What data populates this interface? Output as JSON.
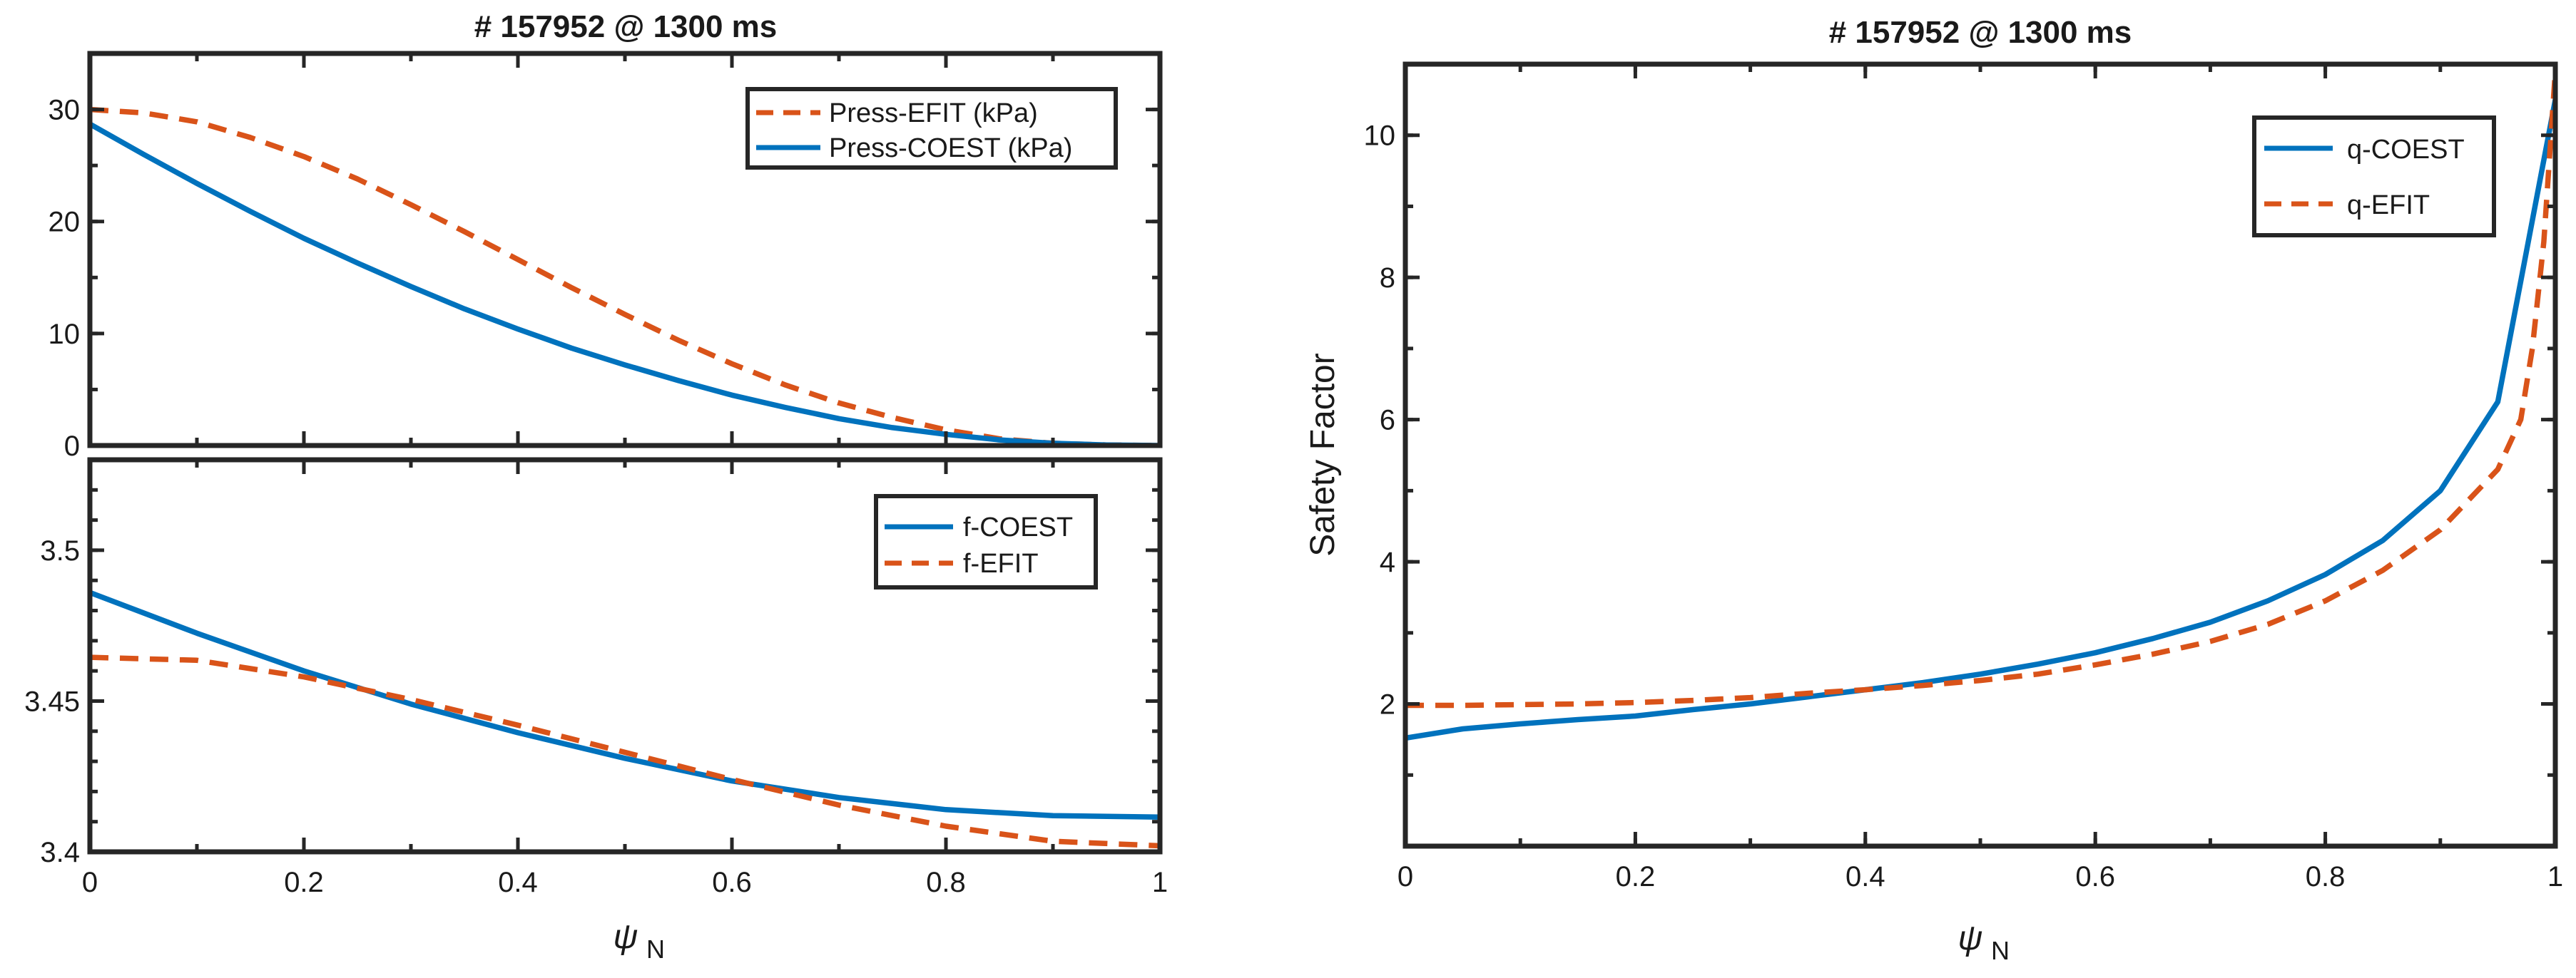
{
  "colors": {
    "coest": "#0072BD",
    "efit": "#D95319",
    "axis": "#262626"
  },
  "chart_data": [
    {
      "id": "pressure",
      "type": "line",
      "title": "# 157952 @ 1300 ms",
      "xlabel": "",
      "ylabel": "",
      "xlim": [
        0,
        1
      ],
      "ylim": [
        0,
        35
      ],
      "xticks": [
        0,
        0.2,
        0.4,
        0.6,
        0.8,
        1
      ],
      "yticks": [
        0,
        10,
        20,
        30
      ],
      "xticklabels": [],
      "yticklabels": [
        "0",
        "10",
        "20",
        "30"
      ],
      "legend_position": "top-right",
      "series": [
        {
          "name": "Press-EFIT (kPa)",
          "style": "dashed",
          "color": "#D95319",
          "x": [
            0,
            0.05,
            0.1,
            0.15,
            0.2,
            0.25,
            0.3,
            0.35,
            0.4,
            0.45,
            0.5,
            0.55,
            0.6,
            0.65,
            0.7,
            0.75,
            0.8,
            0.85,
            0.9,
            0.95,
            1
          ],
          "y": [
            30,
            29.7,
            28.9,
            27.5,
            25.8,
            23.8,
            21.5,
            19.1,
            16.6,
            14.1,
            11.7,
            9.4,
            7.3,
            5.4,
            3.8,
            2.5,
            1.4,
            0.6,
            0.2,
            0.05,
            0
          ]
        },
        {
          "name": "Press-COEST  (kPa)",
          "style": "solid",
          "color": "#0072BD",
          "x": [
            0,
            0.05,
            0.1,
            0.15,
            0.2,
            0.25,
            0.3,
            0.35,
            0.4,
            0.45,
            0.5,
            0.55,
            0.6,
            0.65,
            0.7,
            0.75,
            0.8,
            0.85,
            0.9,
            0.95,
            1
          ],
          "y": [
            28.7,
            26,
            23.4,
            20.9,
            18.5,
            16.3,
            14.2,
            12.2,
            10.4,
            8.7,
            7.2,
            5.8,
            4.5,
            3.4,
            2.4,
            1.6,
            1,
            0.5,
            0.2,
            0.05,
            0
          ]
        }
      ]
    },
    {
      "id": "f-function",
      "type": "line",
      "title": "",
      "xlabel": "ψN",
      "ylabel": "",
      "xlim": [
        0,
        1
      ],
      "ylim": [
        3.4,
        3.53
      ],
      "xticks": [
        0,
        0.2,
        0.4,
        0.6,
        0.8,
        1
      ],
      "yticks": [
        3.4,
        3.45,
        3.5
      ],
      "xticklabels": [
        "0",
        "0.2",
        "0.4",
        "0.6",
        "0.8",
        "1"
      ],
      "yticklabels": [
        "3.4",
        "3.45",
        "3.5"
      ],
      "legend_position": "top-right",
      "series": [
        {
          "name": "f-COEST",
          "style": "solid",
          "color": "#0072BD",
          "x": [
            0,
            0.1,
            0.2,
            0.3,
            0.4,
            0.5,
            0.6,
            0.7,
            0.8,
            0.9,
            1
          ],
          "y": [
            3.486,
            3.4725,
            3.46,
            3.449,
            3.4395,
            3.431,
            3.4235,
            3.418,
            3.414,
            3.412,
            3.4115
          ]
        },
        {
          "name": "f-EFIT",
          "style": "dashed",
          "color": "#D95319",
          "x": [
            0,
            0.1,
            0.2,
            0.3,
            0.4,
            0.5,
            0.6,
            0.7,
            0.8,
            0.9,
            1
          ],
          "y": [
            3.4645,
            3.4635,
            3.458,
            3.4505,
            3.442,
            3.433,
            3.424,
            3.4155,
            3.4085,
            3.4035,
            3.402
          ]
        }
      ]
    },
    {
      "id": "safety-factor",
      "type": "line",
      "title": "# 157952 @ 1300 ms",
      "xlabel": "ψN",
      "ylabel": "Safety Factor",
      "xlim": [
        0,
        1
      ],
      "ylim": [
        0,
        11
      ],
      "xticks": [
        0,
        0.2,
        0.4,
        0.6,
        0.8,
        1
      ],
      "yticks": [
        2,
        4,
        6,
        8,
        10
      ],
      "xticklabels": [
        "0",
        "0.2",
        "0.4",
        "0.6",
        "0.8",
        "1"
      ],
      "yticklabels": [
        "2",
        "4",
        "6",
        "8",
        "10"
      ],
      "legend_position": "top-right",
      "series": [
        {
          "name": "q-COEST",
          "style": "solid",
          "color": "#0072BD",
          "x": [
            0,
            0.05,
            0.1,
            0.15,
            0.2,
            0.25,
            0.3,
            0.35,
            0.4,
            0.45,
            0.5,
            0.55,
            0.6,
            0.65,
            0.7,
            0.75,
            0.8,
            0.85,
            0.9,
            0.95,
            1
          ],
          "y": [
            1.52,
            1.65,
            1.72,
            1.78,
            1.83,
            1.92,
            2,
            2.1,
            2.2,
            2.3,
            2.42,
            2.56,
            2.72,
            2.92,
            3.15,
            3.45,
            3.82,
            4.3,
            5,
            6.25,
            10.5
          ]
        },
        {
          "name": "q-EFIT",
          "style": "dashed",
          "color": "#D95319",
          "x": [
            0,
            0.05,
            0.1,
            0.15,
            0.2,
            0.25,
            0.3,
            0.35,
            0.4,
            0.45,
            0.5,
            0.55,
            0.6,
            0.65,
            0.7,
            0.75,
            0.8,
            0.85,
            0.9,
            0.95,
            0.97,
            0.98,
            0.99,
            1
          ],
          "y": [
            1.98,
            1.98,
            1.99,
            2,
            2.02,
            2.05,
            2.09,
            2.15,
            2.2,
            2.26,
            2.33,
            2.42,
            2.55,
            2.7,
            2.88,
            3.12,
            3.45,
            3.88,
            4.45,
            5.3,
            6,
            7,
            8.5,
            10.9
          ]
        }
      ]
    }
  ]
}
